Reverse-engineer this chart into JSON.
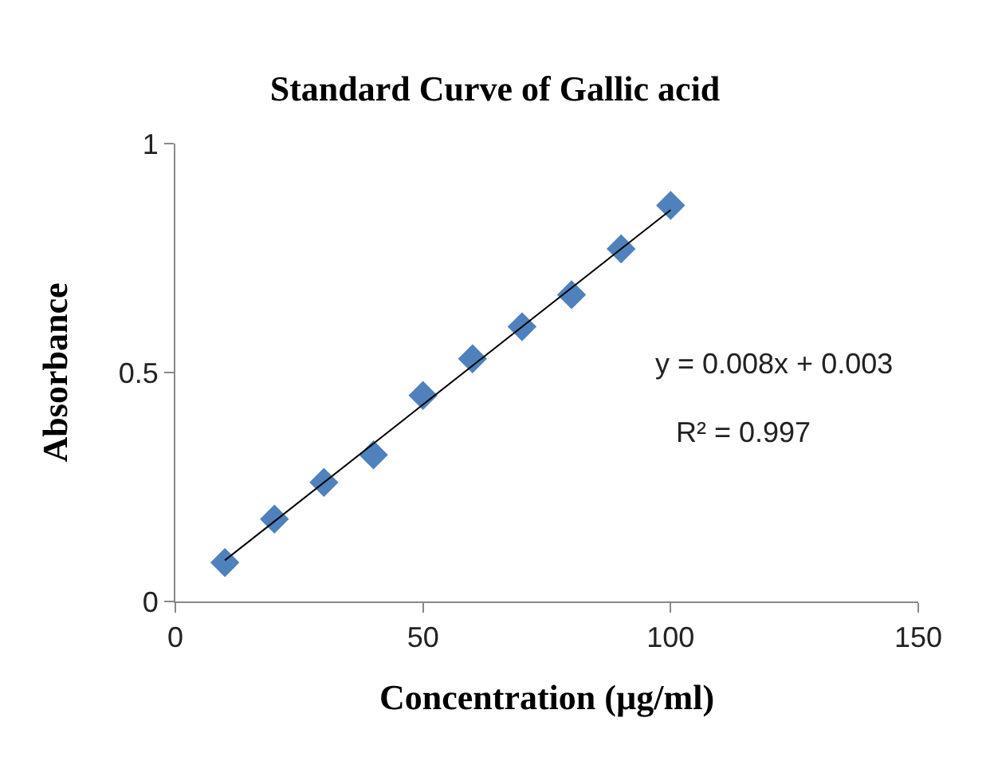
{
  "chart_data": {
    "type": "scatter",
    "title": "Standard Curve of Gallic acid",
    "xlabel": "Concentration (µg/ml)",
    "ylabel": "Absorbance",
    "x": [
      10,
      20,
      30,
      40,
      50,
      60,
      70,
      80,
      90,
      100
    ],
    "series": [
      {
        "color": "#4f81bd",
        "marker": "diamond",
        "values": [
          0.085,
          0.18,
          0.26,
          0.32,
          0.45,
          0.53,
          0.6,
          0.67,
          0.77,
          0.865
        ]
      },
      {
        "type": "line",
        "color": "#000000",
        "x": [
          10,
          100
        ],
        "values": [
          0.09,
          0.855
        ]
      }
    ],
    "annotations": [
      "y = 0.008x + 0.003",
      "R² = 0.997"
    ],
    "xlim": [
      0,
      150
    ],
    "xticks": [
      0,
      50,
      100,
      150
    ],
    "ylim": [
      0,
      1
    ],
    "yticks": [
      0,
      0.5,
      1
    ]
  }
}
